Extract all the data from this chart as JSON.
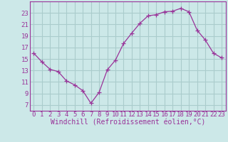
{
  "x": [
    0,
    1,
    2,
    3,
    4,
    5,
    6,
    7,
    8,
    9,
    10,
    11,
    12,
    13,
    14,
    15,
    16,
    17,
    18,
    19,
    20,
    21,
    22,
    23
  ],
  "y": [
    16.0,
    14.5,
    13.2,
    12.8,
    11.2,
    10.5,
    9.5,
    7.3,
    9.2,
    13.1,
    14.8,
    17.7,
    19.5,
    21.2,
    22.5,
    22.7,
    23.2,
    23.3,
    23.8,
    23.2,
    20.0,
    18.3,
    16.0,
    15.2
  ],
  "line_color": "#993399",
  "marker": "+",
  "marker_size": 4,
  "bg_color": "#cce8e8",
  "grid_color": "#aacccc",
  "axis_color": "#993399",
  "xlabel": "Windchill (Refroidissement éolien,°C)",
  "xlabel_fontsize": 7,
  "tick_fontsize": 6.5,
  "xlim": [
    -0.5,
    23.5
  ],
  "ylim": [
    6,
    25
  ],
  "yticks": [
    7,
    9,
    11,
    13,
    15,
    17,
    19,
    21,
    23
  ],
  "xticks": [
    0,
    1,
    2,
    3,
    4,
    5,
    6,
    7,
    8,
    9,
    10,
    11,
    12,
    13,
    14,
    15,
    16,
    17,
    18,
    19,
    20,
    21,
    22,
    23
  ]
}
